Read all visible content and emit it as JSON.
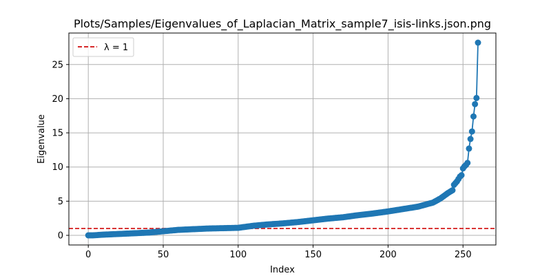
{
  "chart_data": {
    "type": "line",
    "title": "Plots/Samples/Eigenvalues_of_Laplacian_Matrix_sample7_isis-links.json.png",
    "xlabel": "Index",
    "ylabel": "Eigenvalue",
    "xlim": [
      -12.95,
      271.95
    ],
    "ylim": [
      -1.41,
      29.61
    ],
    "x_ticks": [
      0,
      50,
      100,
      150,
      200,
      250
    ],
    "y_ticks": [
      0,
      5,
      10,
      15,
      20,
      25
    ],
    "grid": true,
    "legend_position": "top-left",
    "series": [
      {
        "color": "#1f77b4",
        "marker": "circle",
        "knots": [
          [
            0,
            0.0
          ],
          [
            3,
            0.0
          ],
          [
            10,
            0.1
          ],
          [
            20,
            0.2
          ],
          [
            30,
            0.3
          ],
          [
            40,
            0.4
          ],
          [
            50,
            0.6
          ],
          [
            60,
            0.8
          ],
          [
            70,
            0.9
          ],
          [
            80,
            1.0
          ],
          [
            90,
            1.05
          ],
          [
            100,
            1.1
          ],
          [
            110,
            1.4
          ],
          [
            120,
            1.6
          ],
          [
            130,
            1.75
          ],
          [
            140,
            1.95
          ],
          [
            150,
            2.2
          ],
          [
            160,
            2.45
          ],
          [
            170,
            2.65
          ],
          [
            180,
            2.95
          ],
          [
            190,
            3.2
          ],
          [
            200,
            3.5
          ],
          [
            210,
            3.85
          ],
          [
            220,
            4.2
          ],
          [
            230,
            4.8
          ],
          [
            235,
            5.4
          ],
          [
            240,
            6.2
          ],
          [
            243,
            6.6
          ],
          [
            244,
            7.4
          ],
          [
            246,
            7.9
          ],
          [
            248,
            8.6
          ],
          [
            249,
            8.8
          ],
          [
            250,
            9.8
          ],
          [
            251,
            10.1
          ],
          [
            252,
            10.3
          ],
          [
            253,
            10.6
          ],
          [
            254,
            12.7
          ],
          [
            255,
            14.1
          ],
          [
            256,
            15.2
          ],
          [
            257,
            17.4
          ],
          [
            258,
            19.2
          ],
          [
            259,
            20.1
          ],
          [
            260,
            28.2
          ]
        ]
      }
    ],
    "hlines": [
      {
        "y": 1,
        "label": "λ = 1",
        "color": "#d62728",
        "style": "dashed"
      }
    ]
  }
}
